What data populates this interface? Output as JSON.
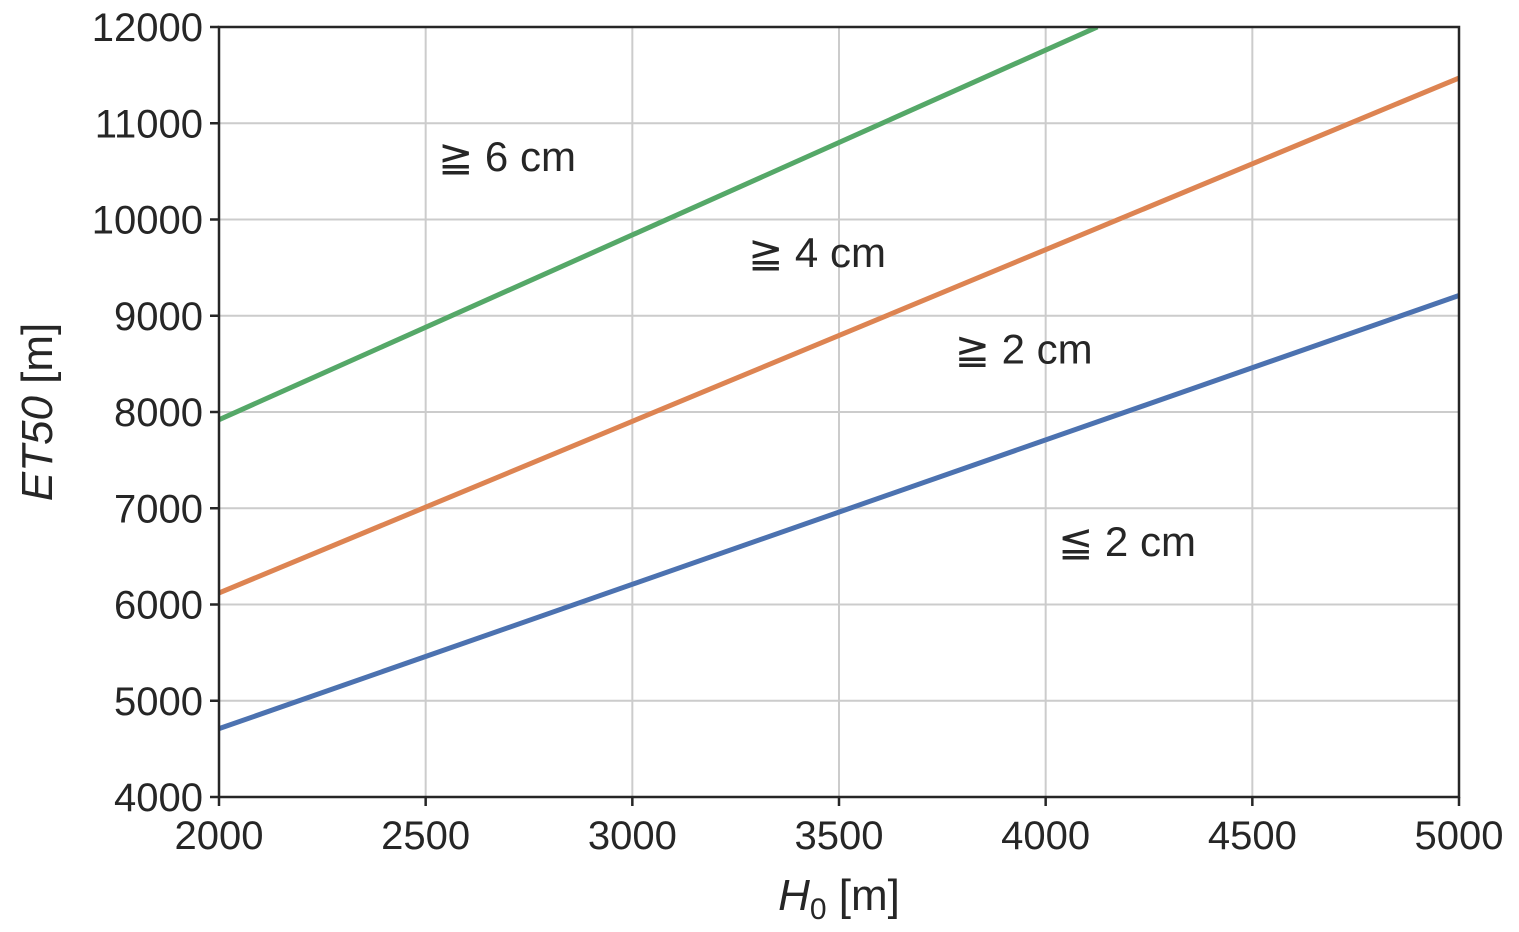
{
  "chart_data": {
    "type": "line",
    "xlabel_main": "H",
    "xlabel_sub": "0",
    "xlabel_unit": " [m]",
    "ylabel_main": "ET50",
    "ylabel_unit": " [m]",
    "xlim": [
      2000,
      5000
    ],
    "ylim": [
      4000,
      12000
    ],
    "xticks": [
      2000,
      2500,
      3000,
      3500,
      4000,
      4500,
      5000
    ],
    "yticks": [
      4000,
      5000,
      6000,
      7000,
      8000,
      9000,
      10000,
      11000,
      12000
    ],
    "grid": true,
    "series": [
      {
        "color": "#4c72b0",
        "x": [
          2000,
          5000
        ],
        "y": [
          4710,
          9210
        ]
      },
      {
        "color": "#dd8452",
        "x": [
          2000,
          5000
        ],
        "y": [
          6120,
          11470
        ]
      },
      {
        "color": "#55a868",
        "x": [
          2000,
          4125
        ],
        "y": [
          7920,
          12000
        ]
      }
    ],
    "annotations": [
      {
        "text": "≧ 6 cm",
        "x": 2530,
        "y": 10650
      },
      {
        "text": "≧ 4 cm",
        "x": 3280,
        "y": 9650
      },
      {
        "text": "≧ 2 cm",
        "x": 3780,
        "y": 8650
      },
      {
        "text": "≦ 2 cm",
        "x": 4030,
        "y": 6650
      }
    ]
  }
}
